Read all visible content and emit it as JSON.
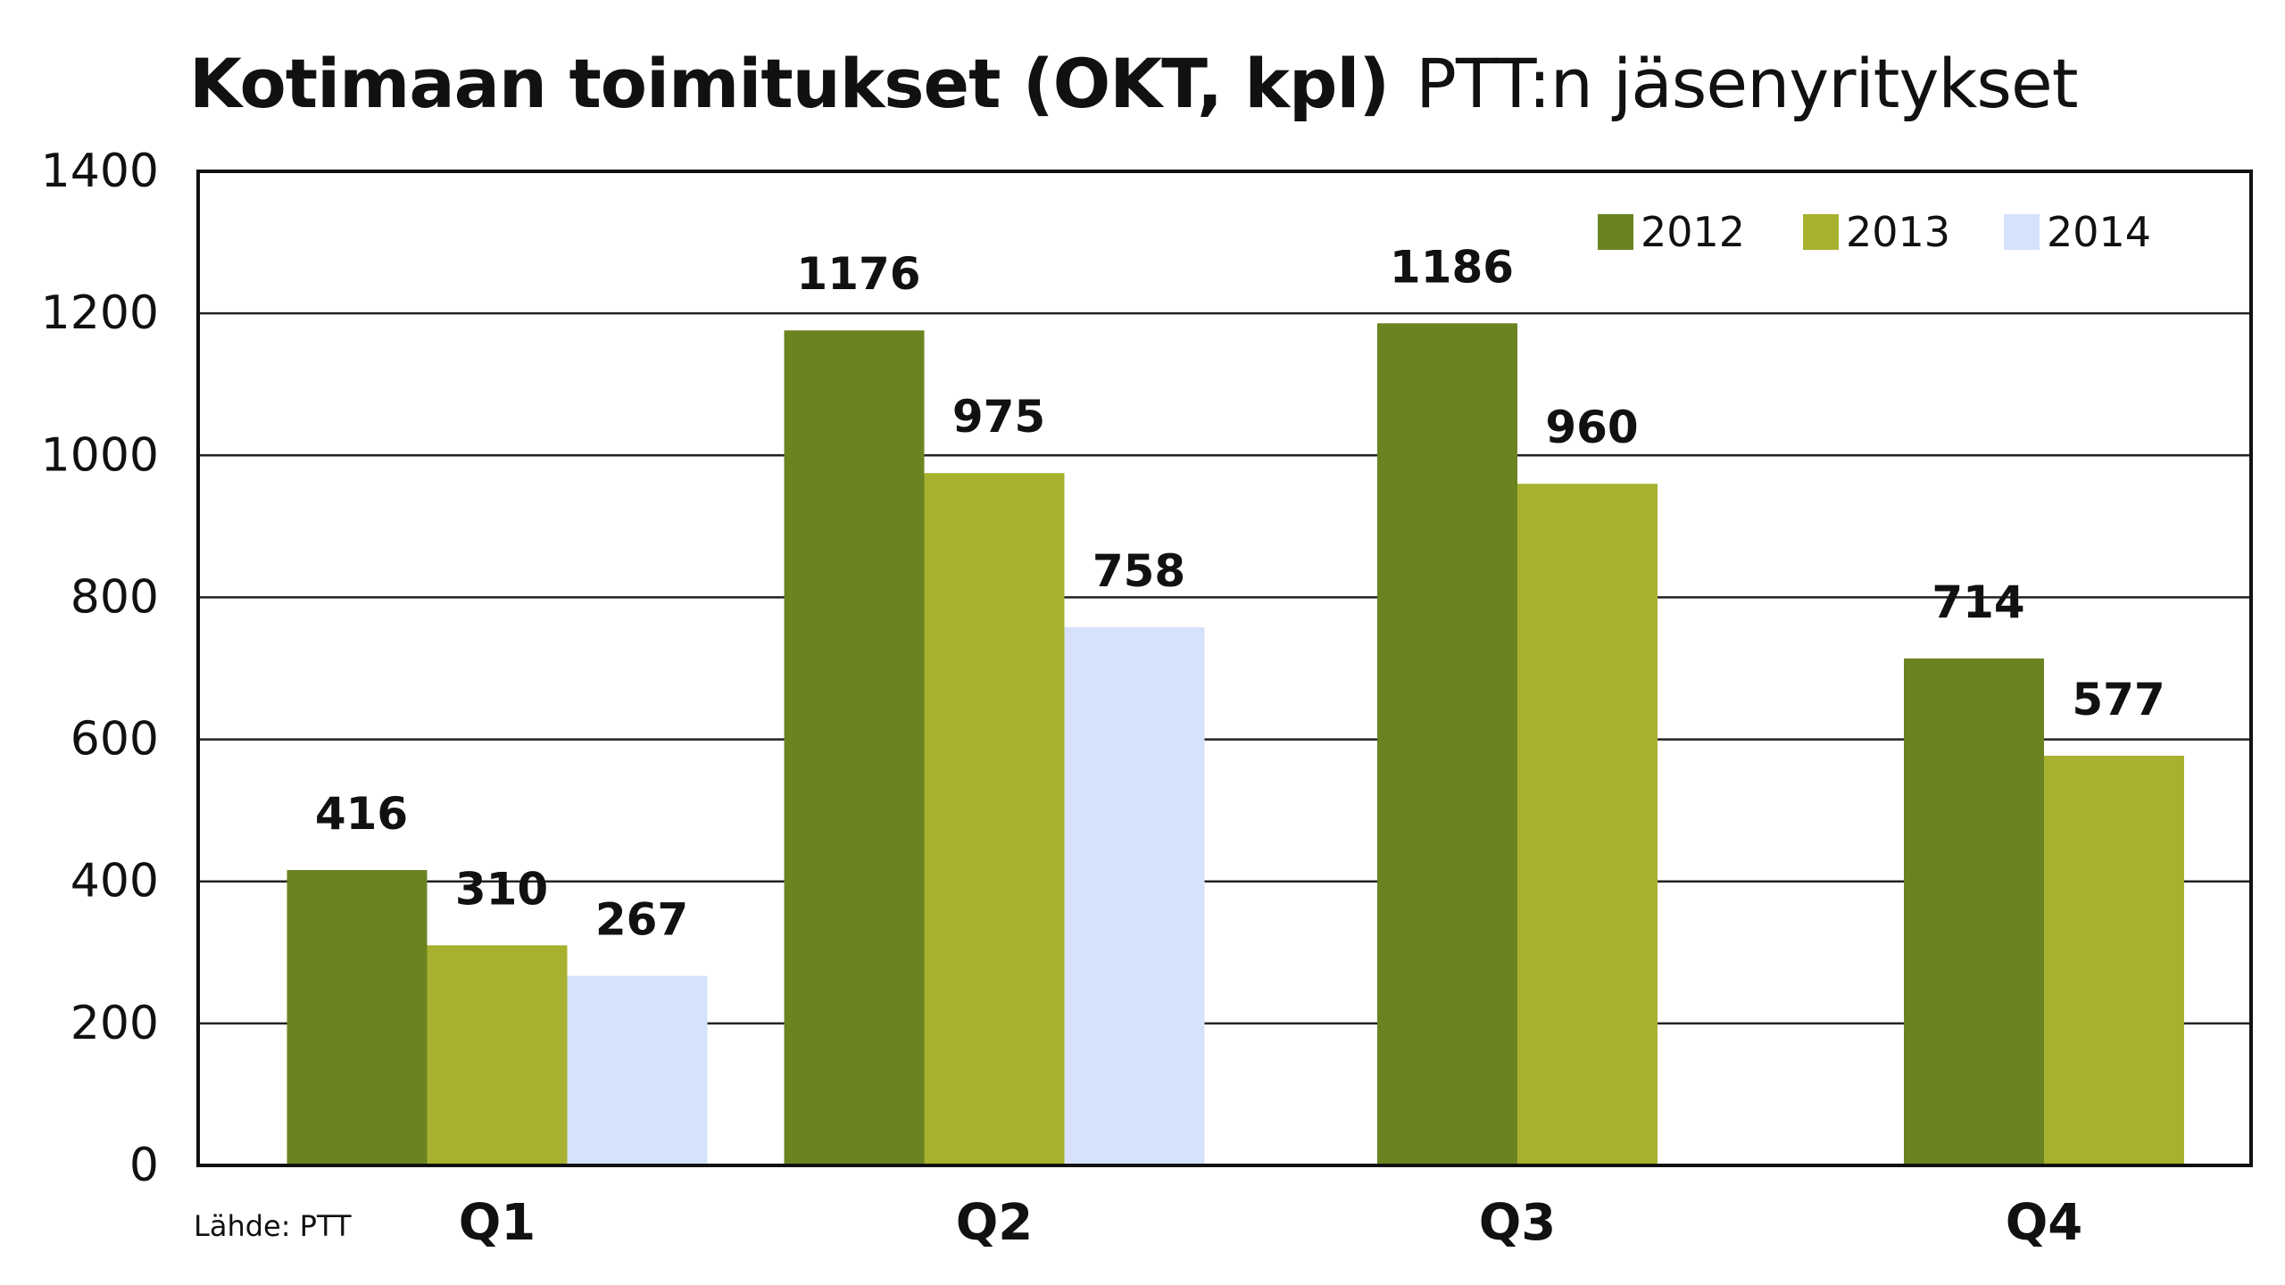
{
  "title": "Kotimaan toimitukset (OKT, kpl)",
  "subtitle": "PTT:n jäsenyritykset",
  "source": "Lähde: PTT",
  "chart_data": {
    "type": "bar",
    "categories": [
      "Q1",
      "Q2",
      "Q3",
      "Q4"
    ],
    "series": [
      {
        "name": "2012",
        "color": "#6b8421",
        "values": [
          416,
          1176,
          1186,
          714
        ]
      },
      {
        "name": "2013",
        "color": "#a8b12f",
        "values": [
          310,
          975,
          960,
          577
        ]
      },
      {
        "name": "2014",
        "color": "#d6e2fb",
        "values": [
          267,
          758,
          null,
          null
        ]
      }
    ],
    "ylim": [
      0,
      1400
    ],
    "yticks": [
      0,
      200,
      400,
      600,
      800,
      1000,
      1200,
      1400
    ],
    "grid": true,
    "legend_position": "top-right",
    "data_labels": true
  }
}
